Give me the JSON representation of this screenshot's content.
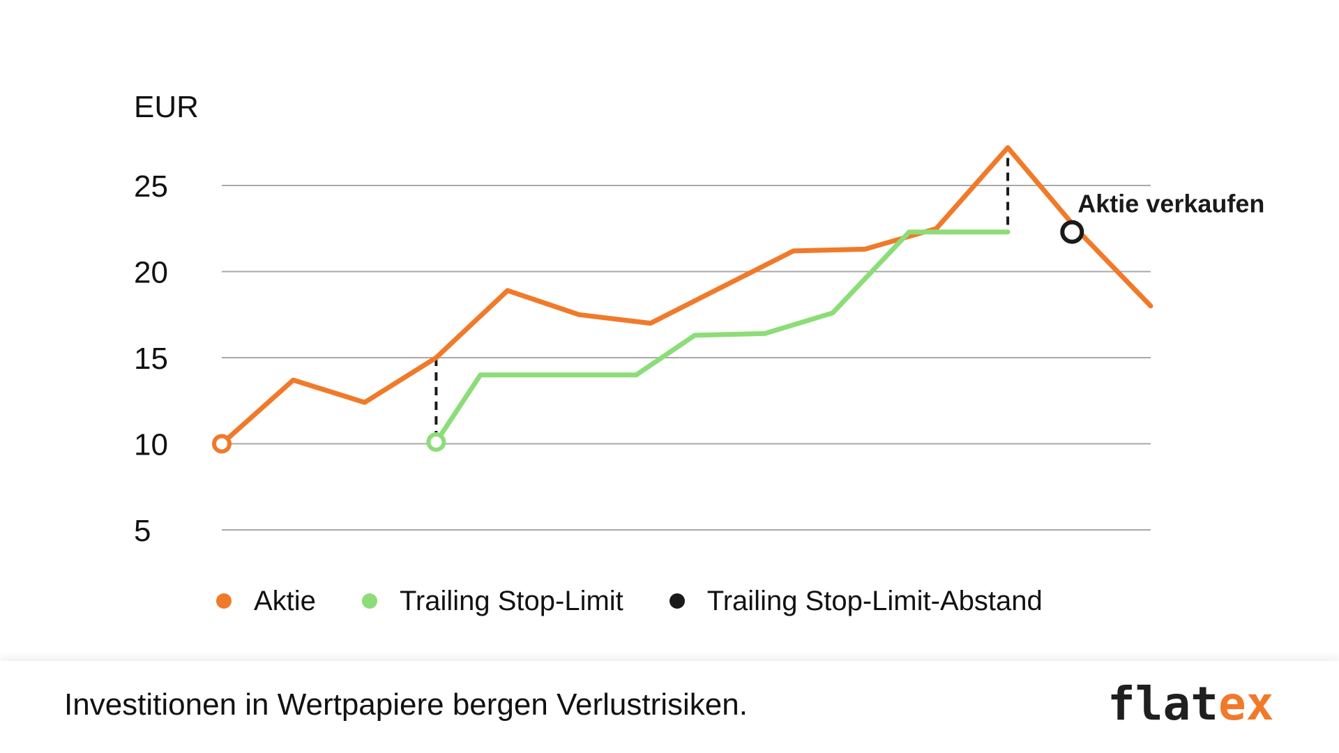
{
  "chart_data": {
    "type": "line",
    "ylabel": "EUR",
    "ylim": [
      5,
      27
    ],
    "yticks": [
      "25",
      "20",
      "15",
      "10",
      "5"
    ],
    "ytick_values": [
      25,
      20,
      15,
      10,
      5
    ],
    "grid": true,
    "x": [
      0,
      1,
      2,
      3,
      4,
      5,
      6,
      7,
      8,
      9,
      10,
      11,
      12,
      13
    ],
    "series": [
      {
        "name": "Aktie",
        "color": "#f07a2a",
        "x": [
          0,
          1,
          2,
          3,
          4,
          5,
          6,
          7,
          8,
          9,
          10,
          11,
          12,
          13
        ],
        "values": [
          10,
          13.7,
          12.4,
          15,
          18.9,
          17.5,
          17,
          19.1,
          21.2,
          21.3,
          22.5,
          27.2,
          22.3,
          18
        ]
      },
      {
        "name": "Trailing Stop-Limit",
        "color": "#8cdd78",
        "x": [
          3,
          3.62,
          4.2,
          5,
          5.8,
          6.62,
          7.6,
          8.55,
          9.62,
          10.25,
          11
        ],
        "values": [
          10.1,
          14,
          14,
          14,
          14,
          16.3,
          16.4,
          17.6,
          22.3,
          22.3,
          22.3
        ]
      }
    ],
    "markers": [
      {
        "series": "Aktie",
        "x": 0,
        "y": 10,
        "color": "#f07a2a"
      },
      {
        "series": "Trailing Stop-Limit",
        "x": 3,
        "y": 10.1,
        "color": "#8cdd78"
      },
      {
        "series": "Trailing Stop-Limit-Abstand",
        "x": 11.9,
        "y": 22.3,
        "color": "#1a1a1a"
      }
    ],
    "gap_indicators": [
      {
        "x": 3,
        "y_from": 15,
        "y_to": 10.3
      },
      {
        "x": 11,
        "y_from": 26.6,
        "y_to": 22.5
      }
    ],
    "annotations": [
      {
        "text": "Aktie verkaufen",
        "x": 11.9,
        "y": 22.3
      }
    ],
    "legend": {
      "placement": "bottom",
      "entries": [
        {
          "label": "Aktie",
          "color": "#f07a2a"
        },
        {
          "label": "Trailing Stop-Limit",
          "color": "#8cdd78"
        },
        {
          "label": "Trailing Stop-Limit-Abstand",
          "color": "#1a1a1a"
        }
      ]
    }
  },
  "footer": {
    "disclaimer": "Investitionen in Wertpapiere bergen Verlustrisiken.",
    "logo_main": "flat",
    "logo_accent": "ex",
    "logo_main_color": "#1f1f1f",
    "logo_accent_color": "#f07a2a"
  }
}
